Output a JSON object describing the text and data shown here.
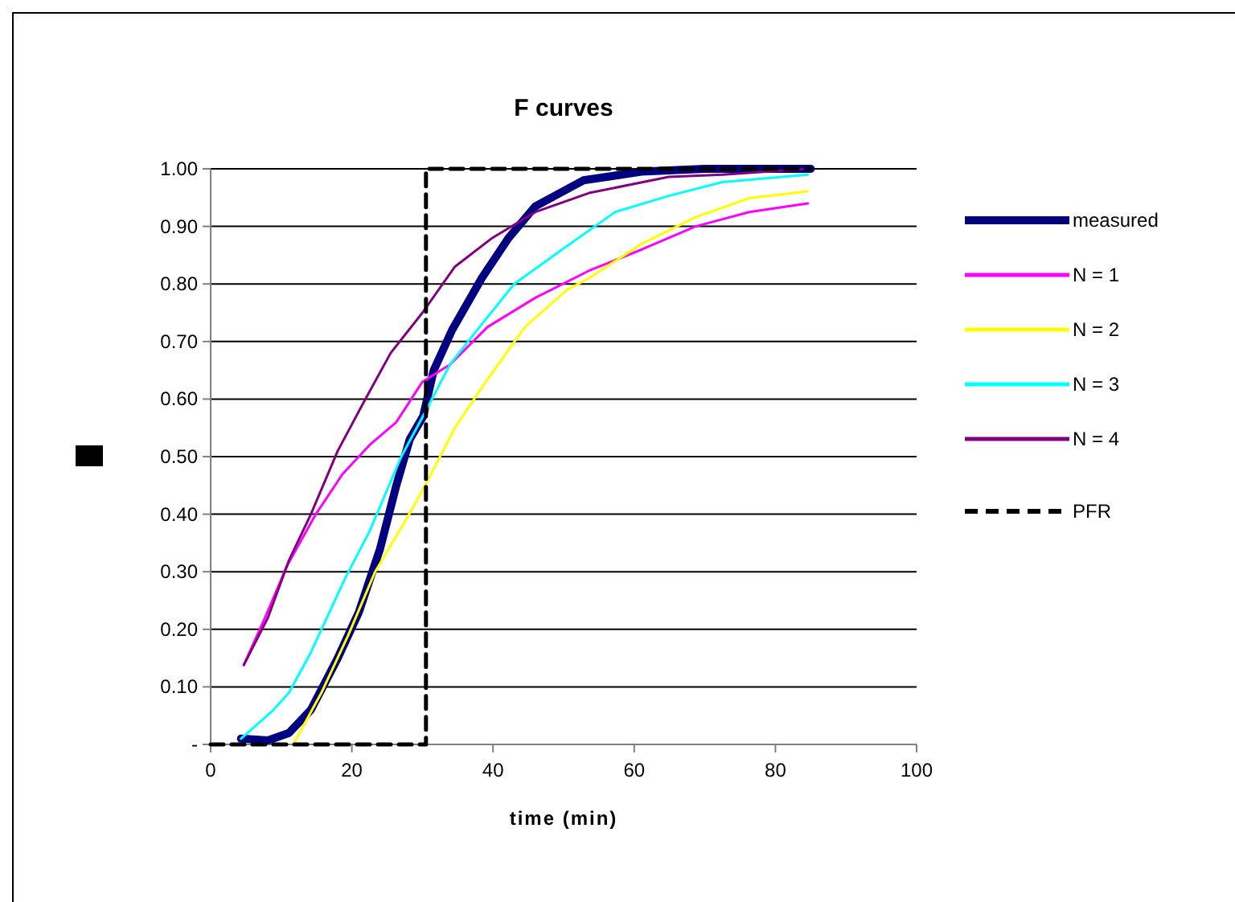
{
  "chart_data": {
    "type": "line",
    "title": "F curves",
    "xlabel": "time (min)",
    "xlim": [
      0,
      100
    ],
    "xticks": [
      0,
      20,
      40,
      60,
      80,
      100
    ],
    "ylim": [
      0,
      1
    ],
    "yticks": [
      {
        "value": 0,
        "label": "-"
      },
      {
        "value": 0.1,
        "label": "0.10"
      },
      {
        "value": 0.2,
        "label": "0.20"
      },
      {
        "value": 0.3,
        "label": "0.30"
      },
      {
        "value": 0.4,
        "label": "0.40"
      },
      {
        "value": 0.5,
        "label": "0.50"
      },
      {
        "value": 0.6,
        "label": "0.60"
      },
      {
        "value": 0.7,
        "label": "0.70"
      },
      {
        "value": 0.8,
        "label": "0.80"
      },
      {
        "value": 0.9,
        "label": "0.90"
      },
      {
        "value": 1,
        "label": "1.00"
      }
    ],
    "grid": "y",
    "legend": "right",
    "marker": "none",
    "series": [
      {
        "name": "measured",
        "color": "#000080",
        "x": [
          4.3,
          8.1,
          11.1,
          14.2,
          18,
          21,
          24,
          26.3,
          28.2,
          30.1,
          31.6,
          34.2,
          38.4,
          42.2,
          46,
          52.8,
          61,
          70,
          85
        ],
        "values": [
          0.01,
          0.007,
          0.02,
          0.06,
          0.15,
          0.23,
          0.34,
          0.45,
          0.53,
          0.57,
          0.65,
          0.72,
          0.81,
          0.88,
          0.935,
          0.98,
          0.995,
          1,
          1
        ]
      },
      {
        "name": "N = 1",
        "color": "#ff00ff",
        "x": [
          4.7,
          7.7,
          10.8,
          14.9,
          18.7,
          22.5,
          26.3,
          30,
          33.9,
          39.2,
          46,
          53.6,
          61.1,
          68.7,
          76.3,
          84.6
        ],
        "values": [
          0.138,
          0.22,
          0.31,
          0.4,
          0.47,
          0.52,
          0.56,
          0.63,
          0.66,
          0.725,
          0.776,
          0.823,
          0.86,
          0.9,
          0.925,
          0.94
        ]
      },
      {
        "name": "N = 2",
        "color": "#ffff00",
        "x": [
          11.7,
          15.7,
          19.5,
          23.3,
          28.6,
          30.8,
          34.6,
          38.4,
          44.5,
          50.5,
          53.6,
          61.1,
          68.7,
          76.3,
          84.6
        ],
        "values": [
          0,
          0.09,
          0.19,
          0.3,
          0.41,
          0.46,
          0.55,
          0.62,
          0.725,
          0.79,
          0.81,
          0.87,
          0.916,
          0.949,
          0.961
        ]
      },
      {
        "name": "N = 3",
        "color": "#00ffff",
        "x": [
          4.3,
          8.9,
          11.1,
          14.2,
          19.1,
          22.5,
          27,
          30.5,
          33.9,
          38.4,
          43,
          49.8,
          57.3,
          64.9,
          72.5,
          84.6
        ],
        "values": [
          0.01,
          0.06,
          0.09,
          0.16,
          0.29,
          0.37,
          0.5,
          0.58,
          0.66,
          0.73,
          0.8,
          0.86,
          0.925,
          0.953,
          0.977,
          0.99
        ]
      },
      {
        "name": "N = 4",
        "color": "#800080",
        "x": [
          4.7,
          8.1,
          11.1,
          14.2,
          18,
          21.7,
          25.5,
          30,
          34.6,
          39.9,
          46,
          53.6,
          64.9,
          72.5,
          84.6
        ],
        "values": [
          0.138,
          0.22,
          0.32,
          0.4,
          0.51,
          0.595,
          0.68,
          0.75,
          0.83,
          0.88,
          0.925,
          0.958,
          0.986,
          0.99,
          1
        ]
      },
      {
        "name": "PFR",
        "color": "#000000",
        "line_style": "dashed",
        "x": [
          0,
          30.5,
          30.5,
          85
        ],
        "values": [
          0,
          0,
          1,
          1
        ]
      }
    ]
  }
}
